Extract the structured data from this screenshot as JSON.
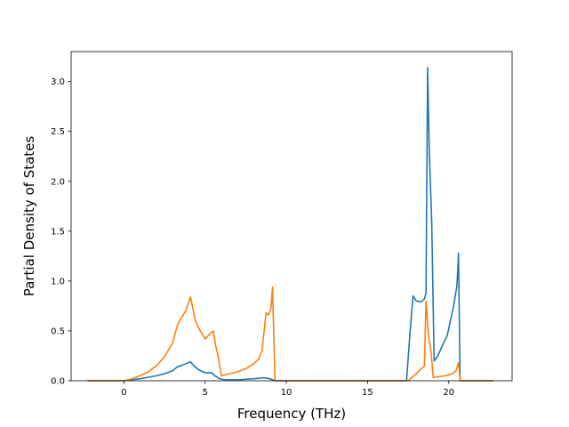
{
  "chart_data": {
    "type": "line",
    "title": "",
    "xlabel": "Frequency (THz)",
    "ylabel": "Partial Density of States",
    "xlim": [
      -3.25,
      23.9
    ],
    "ylim": [
      0.0,
      3.3
    ],
    "xticks": [
      0,
      5,
      10,
      15,
      20
    ],
    "xtick_labels": [
      "0",
      "5",
      "10",
      "15",
      "20"
    ],
    "yticks": [
      0.0,
      0.5,
      1.0,
      1.5,
      2.0,
      2.5,
      3.0
    ],
    "ytick_labels": [
      "0.0",
      "0.5",
      "1.0",
      "1.5",
      "2.0",
      "2.5",
      "3.0"
    ],
    "grid": false,
    "legend": "none",
    "series": [
      {
        "color": "#1f77b4",
        "x": [
          -2.2,
          0.0,
          1.0,
          2.0,
          2.5,
          3.0,
          3.3,
          3.5,
          3.8,
          4.1,
          4.3,
          4.6,
          5.0,
          5.4,
          5.6,
          5.9,
          6.2,
          7.0,
          8.0,
          8.6,
          9.0,
          9.3,
          10.0,
          12.0,
          15.0,
          17.0,
          17.4,
          17.6,
          17.8,
          18.0,
          18.3,
          18.5,
          18.6,
          18.7,
          18.8,
          18.95,
          19.1,
          19.3,
          19.6,
          19.9,
          20.1,
          20.3,
          20.5,
          20.55,
          20.6,
          20.7,
          22.7
        ],
        "y": [
          0.0,
          0.0,
          0.02,
          0.05,
          0.07,
          0.1,
          0.14,
          0.15,
          0.17,
          0.19,
          0.15,
          0.11,
          0.08,
          0.08,
          0.05,
          0.02,
          0.01,
          0.01,
          0.02,
          0.03,
          0.02,
          0.0,
          0.0,
          0.0,
          0.0,
          0.0,
          0.0,
          0.45,
          0.85,
          0.8,
          0.79,
          0.82,
          0.88,
          3.14,
          2.3,
          1.6,
          0.2,
          0.24,
          0.35,
          0.45,
          0.6,
          0.75,
          0.95,
          1.1,
          1.28,
          0.0,
          0.0
        ]
      },
      {
        "color": "#ff7f0e",
        "x": [
          -2.2,
          0.0,
          0.5,
          1.0,
          1.5,
          2.0,
          2.5,
          3.0,
          3.3,
          3.5,
          3.8,
          4.1,
          4.4,
          4.7,
          5.0,
          5.3,
          5.5,
          5.65,
          5.8,
          6.0,
          6.5,
          7.0,
          7.5,
          8.0,
          8.3,
          8.5,
          8.6,
          8.75,
          8.9,
          9.05,
          9.15,
          9.3,
          10.0,
          12.0,
          15.0,
          17.0,
          17.5,
          18.0,
          18.3,
          18.5,
          18.6,
          18.75,
          18.9,
          19.05,
          19.3,
          19.8,
          20.2,
          20.45,
          20.6,
          20.7,
          22.7
        ],
        "y": [
          0.0,
          0.0,
          0.02,
          0.05,
          0.09,
          0.15,
          0.24,
          0.38,
          0.56,
          0.62,
          0.7,
          0.84,
          0.6,
          0.5,
          0.42,
          0.47,
          0.5,
          0.35,
          0.25,
          0.05,
          0.07,
          0.09,
          0.12,
          0.17,
          0.22,
          0.3,
          0.45,
          0.68,
          0.66,
          0.72,
          0.94,
          0.0,
          0.0,
          0.0,
          0.0,
          0.0,
          0.0,
          0.07,
          0.12,
          0.15,
          0.8,
          0.45,
          0.3,
          0.03,
          0.04,
          0.05,
          0.07,
          0.1,
          0.18,
          0.0,
          0.0
        ]
      }
    ]
  }
}
